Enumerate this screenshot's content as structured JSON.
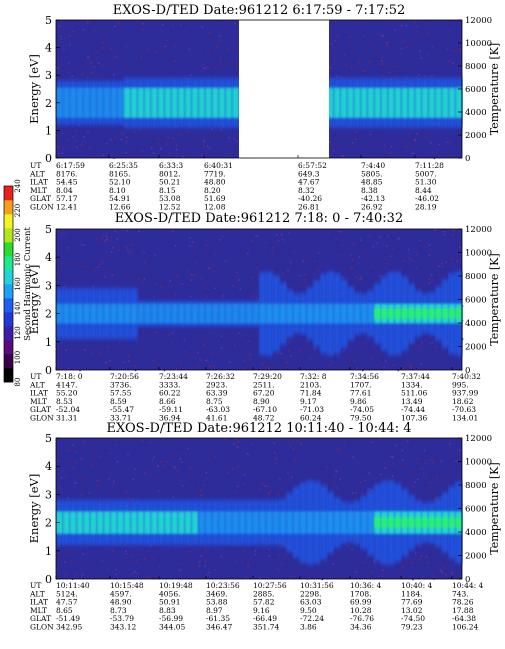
{
  "colorbar": {
    "label": "Second Harmonic Current",
    "ticks": [
      "80",
      "100",
      "120",
      "140",
      "160",
      "180",
      "200",
      "220",
      "240"
    ],
    "colors": [
      "#000000",
      "#3a0048",
      "#5a0a7c",
      "#3e1ea6",
      "#2238d8",
      "#1e5ef6",
      "#1ea0f4",
      "#22d4da",
      "#1ee890",
      "#2adc2a",
      "#b4e61e",
      "#f4f41e",
      "#f4a01e",
      "#ec1e1e"
    ]
  },
  "chart_data": [
    {
      "type": "heatmap",
      "title": "EXOS-D/TED   Date:961212   6:17:59 - 7:17:52",
      "ylabel": "Energy [eV]",
      "ylabel_right": "Temperature [K]",
      "ylim": [
        0,
        5
      ],
      "ylim_right": [
        0,
        12000
      ],
      "yticks": [
        "0",
        "1",
        "2",
        "3",
        "4",
        "5"
      ],
      "yticks_right": [
        "0",
        "2000",
        "4000",
        "6000",
        "8000",
        "10000",
        "12000"
      ],
      "data_gap": [
        "6:57:52 (before)",
        "6:41:00 (after)"
      ],
      "row_labels": [
        "UT",
        "ALT",
        "ILAT",
        "MLT",
        "GLAT",
        "GLON"
      ],
      "columns": [
        [
          "6:17:59",
          "8176.",
          "54.45",
          "8.04",
          "57.17",
          "12.41"
        ],
        [
          "6:25:35",
          "8165.",
          "52.10",
          "8.10",
          "54.91",
          "12.66"
        ],
        [
          "6:33:3",
          "8012.",
          "50.21",
          "8.15",
          "53.08",
          "12.52"
        ],
        [
          "6:40:31",
          "7719.",
          "48.80",
          "8.20",
          "51.69",
          "12.08"
        ],
        [
          "6:57:52",
          "649.3",
          "47.67",
          "8.32",
          "-40.26",
          "26.81"
        ],
        [
          "7:4:40",
          "5805.",
          "48.85",
          "8.38",
          "-42.13",
          "26.92"
        ],
        [
          "7:11:28",
          "5007.",
          "51.30",
          "8.44",
          "-46.02",
          "28.19"
        ]
      ],
      "band_center_ev": 2.0
    },
    {
      "type": "heatmap",
      "title": "EXOS-D/TED   Date:961212   7:18: 0 - 7:40:32",
      "ylabel": "Energy [eV]",
      "ylabel_right": "Temperature [K]",
      "ylim": [
        0,
        5
      ],
      "ylim_right": [
        0,
        12000
      ],
      "yticks": [
        "0",
        "1",
        "2",
        "3",
        "4",
        "5"
      ],
      "yticks_right": [
        "0",
        "2000",
        "4000",
        "6000",
        "8000",
        "10000",
        "12000"
      ],
      "row_labels": [
        "UT",
        "ALT",
        "ILAT",
        "MLT",
        "GLAT",
        "GLON"
      ],
      "columns": [
        [
          "7:18: 0",
          "4147.",
          "55.20",
          "8.53",
          "-52.04",
          "31.31"
        ],
        [
          "7:20:56",
          "3736.",
          "57.55",
          "8.59",
          "-55.47",
          "33.71"
        ],
        [
          "7:23:44",
          "3333.",
          "60.22",
          "8.66",
          "-59.11",
          "36.94"
        ],
        [
          "7:26:32",
          "2923.",
          "63.39",
          "8.75",
          "-63.03",
          "41.61"
        ],
        [
          "7:29:20",
          "2511.",
          "67.20",
          "8.90",
          "-67.10",
          "48.72"
        ],
        [
          "7:32: 8",
          "2103.",
          "71.84",
          "9.17",
          "-71.03",
          "60.24"
        ],
        [
          "7:34:56",
          "1707.",
          "77.61",
          "9.86",
          "-74.05",
          "79.50"
        ],
        [
          "7:37:44",
          "1334.",
          "511.06",
          "13.49",
          "-74.44",
          "107.36"
        ],
        [
          "7:40:32",
          "995.",
          "937.99",
          "18.62",
          "-70.63",
          "134.01"
        ]
      ],
      "band_center_ev": 2.0
    },
    {
      "type": "heatmap",
      "title": "EXOS-D/TED   Date:961212   10:11:40 - 10:44: 4",
      "ylabel": "Energy [eV]",
      "ylabel_right": "Temperature [K]",
      "ylim": [
        0,
        5
      ],
      "ylim_right": [
        0,
        12000
      ],
      "yticks": [
        "0",
        "1",
        "2",
        "3",
        "4",
        "5"
      ],
      "yticks_right": [
        "0",
        "2000",
        "4000",
        "6000",
        "8000",
        "10000",
        "12000"
      ],
      "row_labels": [
        "UT",
        "ALT",
        "ILAT",
        "MLT",
        "GLAT",
        "GLON"
      ],
      "columns": [
        [
          "10:11:40",
          "5124.",
          "47.57",
          "8.65",
          "-51.49",
          "342.95"
        ],
        [
          "10:15:48",
          "4597.",
          "48.90",
          "8.73",
          "-53.79",
          "343.12"
        ],
        [
          "10:19:48",
          "4056.",
          "50.91",
          "8.83",
          "-56.99",
          "344.05"
        ],
        [
          "10:23:56",
          "3469.",
          "53.88",
          "8.97",
          "-61.35",
          "346.47"
        ],
        [
          "10:27:56",
          "2885.",
          "57.82",
          "9.16",
          "-66.49",
          "351.74"
        ],
        [
          "10:31:56",
          "2298.",
          "63.03",
          "9.50",
          "-72.24",
          "3.86"
        ],
        [
          "10:36: 4",
          "1708.",
          "69.99",
          "10.28",
          "-76.76",
          "34.36"
        ],
        [
          "10:40: 4",
          "1184.",
          "77.69",
          "13.02",
          "-74.50",
          "79.23"
        ],
        [
          "10:44: 4",
          "743.",
          "78.26",
          "17.88",
          "-64.38",
          "106.24"
        ]
      ],
      "band_center_ev": 2.0
    }
  ]
}
